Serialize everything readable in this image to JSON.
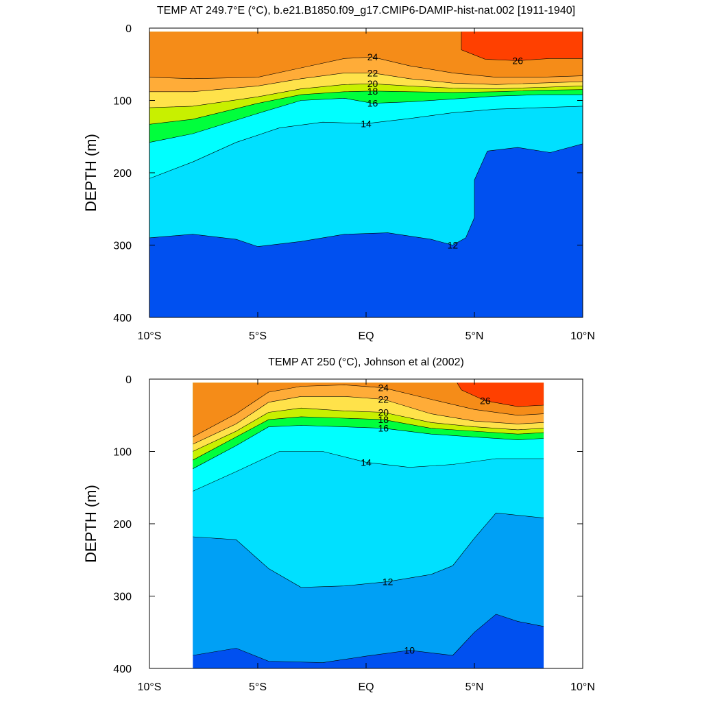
{
  "chart_data": [
    {
      "type": "contour",
      "title": "TEMP AT 249.7°E (°C), b.e21.B1850.f09_g17.CMIP6-DAMIP-hist-nat.002 [1911-1940]",
      "xlabel": "",
      "ylabel": "DEPTH (m)",
      "x_ticks": [
        "10°S",
        "5°S",
        "EQ",
        "5°N",
        "10°N"
      ],
      "y_ticks": [
        "0",
        "100",
        "200",
        "300",
        "400"
      ],
      "xlim": [
        -10,
        10
      ],
      "ylim": [
        0,
        400
      ],
      "data_xlim": [
        -10,
        10
      ],
      "isotherms": [
        {
          "level": 26,
          "points": [
            [
              4.4,
              5
            ],
            [
              4.4,
              30
            ],
            [
              5.5,
              43
            ],
            [
              7,
              45
            ],
            [
              8.5,
              42
            ],
            [
              10,
              42
            ]
          ]
        },
        {
          "level": 24,
          "points": [
            [
              -10,
              68
            ],
            [
              -8,
              70
            ],
            [
              -5,
              68
            ],
            [
              -3,
              55
            ],
            [
              -1,
              42
            ],
            [
              0.3,
              40
            ],
            [
              2,
              52
            ],
            [
              4,
              62
            ],
            [
              6,
              68
            ],
            [
              8,
              68
            ],
            [
              10,
              66
            ]
          ]
        },
        {
          "level": 22,
          "points": [
            [
              -10,
              88
            ],
            [
              -8,
              88
            ],
            [
              -5,
              80
            ],
            [
              -3,
              70
            ],
            [
              -1,
              62
            ],
            [
              0.3,
              62
            ],
            [
              2,
              70
            ],
            [
              4,
              76
            ],
            [
              6,
              78
            ],
            [
              8,
              76
            ],
            [
              10,
              74
            ]
          ]
        },
        {
          "level": 20,
          "points": [
            [
              -10,
              110
            ],
            [
              -8,
              108
            ],
            [
              -5,
              95
            ],
            [
              -3,
              84
            ],
            [
              -1,
              78
            ],
            [
              0.3,
              77
            ],
            [
              2,
              80
            ],
            [
              4,
              83
            ],
            [
              6,
              84
            ],
            [
              8,
              82
            ],
            [
              10,
              80
            ]
          ]
        },
        {
          "level": 18,
          "points": [
            [
              -10,
              133
            ],
            [
              -8,
              126
            ],
            [
              -5,
              104
            ],
            [
              -3,
              92
            ],
            [
              -1,
              88
            ],
            [
              0.3,
              87
            ],
            [
              2,
              88
            ],
            [
              4,
              89
            ],
            [
              6,
              88
            ],
            [
              8,
              86
            ],
            [
              10,
              85
            ]
          ]
        },
        {
          "level": 16,
          "points": [
            [
              -10,
              158
            ],
            [
              -8,
              146
            ],
            [
              -5,
              118
            ],
            [
              -3,
              100
            ],
            [
              -1,
              97
            ],
            [
              0.3,
              104
            ],
            [
              2,
              102
            ],
            [
              4,
              98
            ],
            [
              6,
              94
            ],
            [
              8,
              92
            ],
            [
              10,
              92
            ]
          ]
        },
        {
          "level": 14,
          "points": [
            [
              -10,
              208
            ],
            [
              -8,
              185
            ],
            [
              -6,
              158
            ],
            [
              -4,
              138
            ],
            [
              -2,
              130
            ],
            [
              0,
              132
            ],
            [
              2,
              125
            ],
            [
              4,
              117
            ],
            [
              6,
              112
            ],
            [
              8,
              110
            ],
            [
              10,
              108
            ]
          ]
        },
        {
          "level": 12,
          "points": [
            [
              -10,
              290
            ],
            [
              -8,
              285
            ],
            [
              -6,
              292
            ],
            [
              -5,
              302
            ],
            [
              -3,
              295
            ],
            [
              -1,
              285
            ],
            [
              1,
              283
            ],
            [
              3,
              292
            ],
            [
              4,
              300
            ],
            [
              4.6,
              290
            ],
            [
              5,
              262
            ],
            [
              5,
              210
            ],
            [
              5.6,
              170
            ],
            [
              7,
              165
            ],
            [
              8.5,
              172
            ],
            [
              10,
              160
            ]
          ]
        }
      ],
      "color_scale": [
        "#0050f0",
        "#0a7df5",
        "#00a0f5",
        "#00c8f8",
        "#00e0ff",
        "#30ecfa",
        "#00ffff",
        "#00ff9a",
        "#00ff3c",
        "#5ef000",
        "#c8f000",
        "#ffff00",
        "#ffe24a",
        "#ffc840",
        "#ffac38",
        "#ff9b30",
        "#f58c18",
        "#ff8000",
        "#ff4000",
        "#e01010"
      ]
    },
    {
      "type": "contour",
      "title": "TEMP AT 250 (°C), Johnson et al (2002)",
      "xlabel": "",
      "ylabel": "DEPTH (m)",
      "x_ticks": [
        "10°S",
        "5°S",
        "EQ",
        "5°N",
        "10°N"
      ],
      "y_ticks": [
        "0",
        "100",
        "200",
        "300",
        "400"
      ],
      "xlim": [
        -10,
        10
      ],
      "ylim": [
        0,
        400
      ],
      "data_xlim": [
        -8,
        8.2
      ],
      "isotherms": [
        {
          "level": 26,
          "points": [
            [
              4.2,
              5
            ],
            [
              4.4,
              15
            ],
            [
              5.5,
              30
            ],
            [
              7,
              38
            ],
            [
              8.2,
              36
            ]
          ]
        },
        {
          "level": 24,
          "points": [
            [
              -8,
              80
            ],
            [
              -6,
              48
            ],
            [
              -4.5,
              18
            ],
            [
              -3,
              10
            ],
            [
              -1,
              8
            ],
            [
              0.8,
              12
            ],
            [
              3,
              28
            ],
            [
              5,
              42
            ],
            [
              7,
              50
            ],
            [
              8.2,
              48
            ]
          ]
        },
        {
          "level": 22,
          "points": [
            [
              -8,
              90
            ],
            [
              -6,
              62
            ],
            [
              -4.5,
              32
            ],
            [
              -3,
              24
            ],
            [
              -1,
              24
            ],
            [
              0.8,
              28
            ],
            [
              3,
              48
            ],
            [
              5,
              58
            ],
            [
              7,
              62
            ],
            [
              8.2,
              60
            ]
          ]
        },
        {
          "level": 20,
          "points": [
            [
              -8,
              100
            ],
            [
              -6,
              72
            ],
            [
              -4.5,
              46
            ],
            [
              -3,
              40
            ],
            [
              -1,
              44
            ],
            [
              0.8,
              46
            ],
            [
              3,
              60
            ],
            [
              5,
              66
            ],
            [
              7,
              70
            ],
            [
              8.2,
              68
            ]
          ]
        },
        {
          "level": 18,
          "points": [
            [
              -8,
              112
            ],
            [
              -6,
              80
            ],
            [
              -4.5,
              56
            ],
            [
              -3,
              52
            ],
            [
              -1,
              54
            ],
            [
              0.8,
              56
            ],
            [
              3,
              68
            ],
            [
              5,
              72
            ],
            [
              7,
              76
            ],
            [
              8.2,
              74
            ]
          ]
        },
        {
          "level": 16,
          "points": [
            [
              -8,
              124
            ],
            [
              -6,
              92
            ],
            [
              -4.5,
              66
            ],
            [
              -3,
              64
            ],
            [
              -1,
              66
            ],
            [
              0.8,
              68
            ],
            [
              3,
              76
            ],
            [
              5,
              80
            ],
            [
              7,
              84
            ],
            [
              8.2,
              82
            ]
          ]
        },
        {
          "level": 14,
          "points": [
            [
              -8,
              155
            ],
            [
              -6,
              128
            ],
            [
              -4,
              100
            ],
            [
              -2,
              100
            ],
            [
              0,
              115
            ],
            [
              2,
              122
            ],
            [
              4,
              118
            ],
            [
              6,
              110
            ],
            [
              8.2,
              110
            ]
          ]
        },
        {
          "level": 12,
          "points": [
            [
              -8,
              218
            ],
            [
              -6,
              222
            ],
            [
              -4.5,
              262
            ],
            [
              -3,
              288
            ],
            [
              -1,
              286
            ],
            [
              1,
              280
            ],
            [
              3,
              270
            ],
            [
              4,
              258
            ],
            [
              5,
              220
            ],
            [
              6,
              185
            ],
            [
              8.2,
              192
            ]
          ]
        },
        {
          "level": 10,
          "points": [
            [
              -8,
              382
            ],
            [
              -6,
              372
            ],
            [
              -4.5,
              390
            ],
            [
              -2,
              392
            ],
            [
              0,
              383
            ],
            [
              2,
              375
            ],
            [
              4,
              382
            ],
            [
              5,
              350
            ],
            [
              6,
              325
            ],
            [
              7,
              335
            ],
            [
              8.2,
              342
            ]
          ]
        }
      ],
      "color_scale": [
        "#0050f0",
        "#0a7df5",
        "#00a0f5",
        "#00c8f8",
        "#00e0ff",
        "#30ecfa",
        "#00ffff",
        "#00ff9a",
        "#00ff3c",
        "#5ef000",
        "#c8f000",
        "#ffff00",
        "#ffe24a",
        "#ffc840",
        "#ffac38",
        "#ff9b30",
        "#f58c18",
        "#ff8000",
        "#ff4000",
        "#e01010"
      ]
    }
  ]
}
